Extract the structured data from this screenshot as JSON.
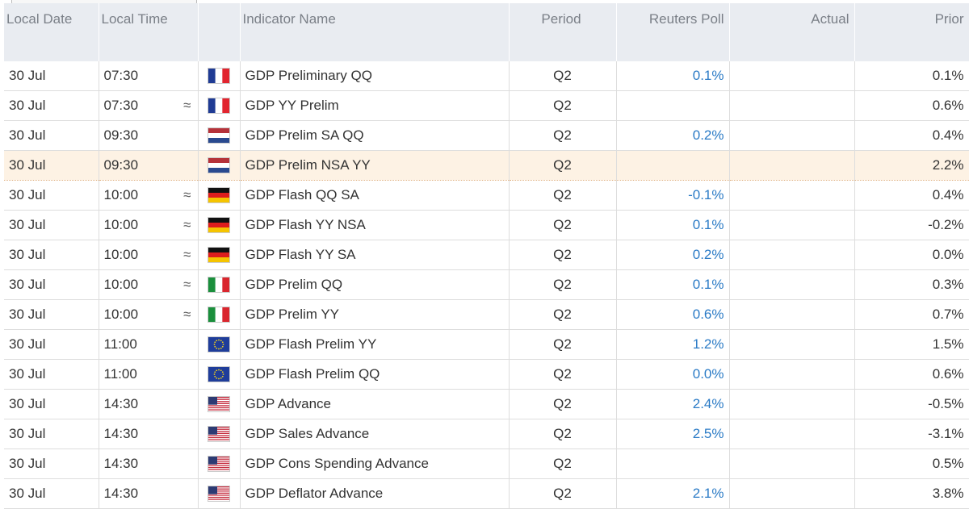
{
  "table": {
    "columns": [
      "Local Date",
      "Local Time",
      "Indicator Name",
      "Period",
      "Reuters Poll",
      "Actual",
      "Prior"
    ],
    "rows": [
      {
        "date": "30 Jul",
        "time": "07:30",
        "indicator": "GDP Preliminary QQ",
        "period": "Q2",
        "poll": "0.1%",
        "prior": "0.1%"
      },
      {
        "date": "30 Jul",
        "time": "07:30",
        "approx": "≈",
        "indicator": "GDP YY Prelim",
        "period": "Q2",
        "prior": "0.6%"
      },
      {
        "date": "30 Jul",
        "time": "09:30",
        "indicator": "GDP Prelim SA QQ",
        "period": "Q2",
        "poll": "0.2%",
        "prior": "0.4%"
      },
      {
        "date": "30 Jul",
        "time": "09:30",
        "indicator": "GDP Prelim NSA YY",
        "period": "Q2",
        "prior": "2.2%"
      },
      {
        "date": "30 Jul",
        "time": "10:00",
        "approx": "≈",
        "indicator": "GDP Flash QQ SA",
        "period": "Q2",
        "poll": "-0.1%",
        "prior": "0.4%"
      },
      {
        "date": "30 Jul",
        "time": "10:00",
        "approx": "≈",
        "indicator": "GDP Flash YY NSA",
        "period": "Q2",
        "poll": "0.1%",
        "prior": "-0.2%"
      },
      {
        "date": "30 Jul",
        "time": "10:00",
        "approx": "≈",
        "indicator": "GDP Flash YY SA",
        "period": "Q2",
        "poll": "0.2%",
        "prior": "0.0%"
      },
      {
        "date": "30 Jul",
        "time": "10:00",
        "approx": "≈",
        "indicator": "GDP Prelim QQ",
        "period": "Q2",
        "poll": "0.1%",
        "prior": "0.3%"
      },
      {
        "date": "30 Jul",
        "time": "10:00",
        "approx": "≈",
        "indicator": "GDP Prelim YY",
        "period": "Q2",
        "poll": "0.6%",
        "prior": "0.7%"
      },
      {
        "date": "30 Jul",
        "time": "11:00",
        "indicator": "GDP Flash Prelim YY",
        "period": "Q2",
        "poll": "1.2%",
        "prior": "1.5%"
      },
      {
        "date": "30 Jul",
        "time": "11:00",
        "indicator": "GDP Flash Prelim QQ",
        "period": "Q2",
        "poll": "0.0%",
        "prior": "0.6%"
      },
      {
        "date": "30 Jul",
        "time": "14:30",
        "indicator": "GDP Advance",
        "period": "Q2",
        "poll": "2.4%",
        "prior": "-0.5%"
      },
      {
        "date": "30 Jul",
        "time": "14:30",
        "indicator": "GDP Sales Advance",
        "period": "Q2",
        "poll": "2.5%",
        "prior": "-3.1%"
      },
      {
        "date": "30 Jul",
        "time": "14:30",
        "indicator": "GDP Cons Spending Advance",
        "period": "Q2",
        "prior": "0.5%"
      },
      {
        "date": "30 Jul",
        "time": "14:30",
        "indicator": "GDP Deflator Advance",
        "period": "Q2",
        "poll": "2.1%",
        "prior": "3.8%"
      }
    ]
  }
}
